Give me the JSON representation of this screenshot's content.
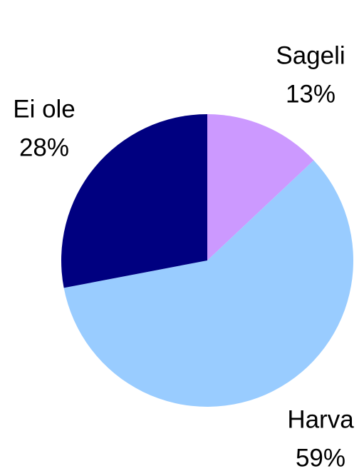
{
  "chart_data": {
    "type": "pie",
    "categories": [
      "Sageli",
      "Harva",
      "Ei ole"
    ],
    "values": [
      13,
      59,
      28
    ],
    "value_labels": [
      "13%",
      "59%",
      "28%"
    ],
    "colors": [
      "#cc99ff",
      "#99ccff",
      "#000080"
    ]
  }
}
